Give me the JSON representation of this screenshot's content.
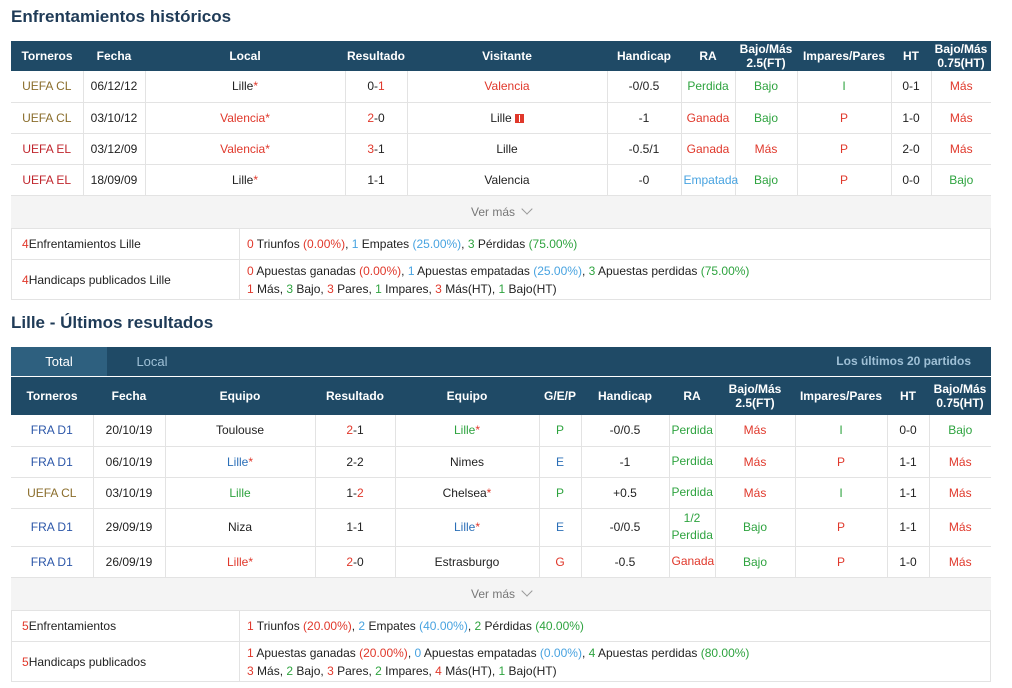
{
  "h2h": {
    "title": "Enfrentamientos históricos",
    "headers": [
      "Torneros",
      "Fecha",
      "Local",
      "Resultado",
      "Visitante",
      "Handicap",
      "RA",
      "Bajo/Más 2.5(FT)",
      "Impares/Pares",
      "HT",
      "Bajo/Más 0.75(HT)"
    ],
    "rows": [
      {
        "t": "UEFA CL",
        "tc": "c-gold",
        "f": "06/12/12",
        "l": "Lille",
        "lc": "",
        "ls": true,
        "ra": "0",
        "rb": "1",
        "rc": "b",
        "v": "Valencia",
        "vc": "c-red",
        "vs": false,
        "vf": false,
        "h": "-0/0.5",
        "a": "Perdida",
        "ac": "c-green",
        "b": "Bajo",
        "bc": "c-green",
        "i": "I",
        "ic": "c-green",
        "ht": "0-1",
        "m": "Más",
        "mc": "c-red"
      },
      {
        "t": "UEFA CL",
        "tc": "c-gold",
        "f": "03/10/12",
        "l": "Valencia",
        "lc": "c-red",
        "ls": true,
        "ra": "2",
        "rb": "0",
        "rc": "a",
        "v": "Lille",
        "vc": "",
        "vs": false,
        "vf": true,
        "h": "-1",
        "a": "Ganada",
        "ac": "c-red",
        "b": "Bajo",
        "bc": "c-green",
        "i": "P",
        "ic": "c-red",
        "ht": "1-0",
        "m": "Más",
        "mc": "c-red"
      },
      {
        "t": "UEFA EL",
        "tc": "c-dred",
        "f": "03/12/09",
        "l": "Valencia",
        "lc": "c-red",
        "ls": true,
        "ra": "3",
        "rb": "1",
        "rc": "a",
        "v": "Lille",
        "vc": "",
        "vs": false,
        "vf": false,
        "h": "-0.5/1",
        "a": "Ganada",
        "ac": "c-red",
        "b": "Más",
        "bc": "c-red",
        "i": "P",
        "ic": "c-red",
        "ht": "2-0",
        "m": "Más",
        "mc": "c-red"
      },
      {
        "t": "UEFA EL",
        "tc": "c-dred",
        "f": "18/09/09",
        "l": "Lille",
        "lc": "",
        "ls": true,
        "ra": "1",
        "rb": "1",
        "rc": "",
        "v": "Valencia",
        "vc": "",
        "vs": false,
        "vf": false,
        "h": "-0",
        "a": "Empatada",
        "ac": "c-lblue",
        "b": "Bajo",
        "bc": "c-green",
        "i": "P",
        "ic": "c-red",
        "ht": "0-0",
        "m": "Bajo",
        "mc": "c-green"
      }
    ],
    "ver_mas": "Ver más",
    "summary": {
      "r1_label": "4 Enfrentamientos Lille",
      "r1": {
        "wn": "0",
        "wt": " Triunfos ",
        "wp": "(0.00%)",
        "dn": "1",
        "dt": " Empates ",
        "dp": "(25.00%)",
        "ln": "3",
        "lt": " Pérdidas ",
        "lp": "(75.00%)"
      },
      "r2_label": "4 Handicaps publicados Lille",
      "r2": {
        "wn": "0",
        "wt": " Apuestas ganadas ",
        "wp": "(0.00%)",
        "dn": "1",
        "dt": " Apuestas empatadas ",
        "dp": "(25.00%)",
        "ln": "3",
        "lt": " Apuestas perdidas ",
        "lp": "(75.00%)"
      },
      "r3": {
        "a": "1",
        "at": " Más, ",
        "b": "3",
        "bt": " Bajo, ",
        "c": "3",
        "ct": " Pares, ",
        "d": "1",
        "dt": " Impares, ",
        "e": "3",
        "et": " Más(HT), ",
        "f": "1",
        "ft": " Bajo(HT)"
      }
    }
  },
  "last": {
    "title": "Lille - Últimos resultados",
    "tab_total": "Total",
    "tab_local": "Local",
    "tab_right": "Los últimos 20 partidos",
    "headers": [
      "Torneros",
      "Fecha",
      "Equipo",
      "Resultado",
      "Equipo",
      "G/E/P",
      "Handicap",
      "RA",
      "Bajo/Más 2.5(FT)",
      "Impares/Pares",
      "HT",
      "Bajo/Más 0.75(HT)"
    ],
    "rows": [
      {
        "t": "FRA D1",
        "tc": "c-navy",
        "f": "20/10/19",
        "l": "Toulouse",
        "lc": "",
        "ls": false,
        "ra": "2",
        "rb": "1",
        "rc": "a",
        "v": "Lille",
        "vc": "c-green",
        "vs": true,
        "g": "P",
        "gc": "c-green",
        "h": "-0/0.5",
        "a": "Perdida",
        "ac": "c-green",
        "a2": "",
        "b": "Más",
        "bc": "c-red",
        "i": "I",
        "ic": "c-green",
        "ht": "0-0",
        "m": "Bajo",
        "mc": "c-green"
      },
      {
        "t": "FRA D1",
        "tc": "c-navy",
        "f": "06/10/19",
        "l": "Lille",
        "lc": "c-blue",
        "ls": true,
        "ra": "2",
        "rb": "2",
        "rc": "",
        "v": "Nimes",
        "vc": "",
        "vs": false,
        "g": "E",
        "gc": "c-blue",
        "h": "-1",
        "a": "Perdida",
        "ac": "c-green",
        "a2": "",
        "b": "Más",
        "bc": "c-red",
        "i": "P",
        "ic": "c-red",
        "ht": "1-1",
        "m": "Más",
        "mc": "c-red"
      },
      {
        "t": "UEFA CL",
        "tc": "c-gold",
        "f": "03/10/19",
        "l": "Lille",
        "lc": "c-green",
        "ls": false,
        "ra": "1",
        "rb": "2",
        "rc": "b",
        "v": "Chelsea",
        "vc": "",
        "vs": true,
        "g": "P",
        "gc": "c-green",
        "h": "+0.5",
        "a": "Perdida",
        "ac": "c-green",
        "a2": "",
        "b": "Más",
        "bc": "c-red",
        "i": "I",
        "ic": "c-green",
        "ht": "1-1",
        "m": "Más",
        "mc": "c-red"
      },
      {
        "t": "FRA D1",
        "tc": "c-navy",
        "f": "29/09/19",
        "l": "Niza",
        "lc": "",
        "ls": false,
        "ra": "1",
        "rb": "1",
        "rc": "",
        "v": "Lille",
        "vc": "c-blue",
        "vs": true,
        "g": "E",
        "gc": "c-blue",
        "h": "-0/0.5",
        "a": "1/2",
        "ac": "c-green",
        "a2": "Perdida",
        "b": "Bajo",
        "bc": "c-green",
        "i": "P",
        "ic": "c-red",
        "ht": "1-1",
        "m": "Más",
        "mc": "c-red"
      },
      {
        "t": "FRA D1",
        "tc": "c-navy",
        "f": "26/09/19",
        "l": "Lille",
        "lc": "c-red",
        "ls": true,
        "ra": "2",
        "rb": "0",
        "rc": "a",
        "v": "Estrasburgo",
        "vc": "",
        "vs": false,
        "g": "G",
        "gc": "c-red",
        "h": "-0.5",
        "a": "Ganada",
        "ac": "c-red",
        "a2": "",
        "b": "Bajo",
        "bc": "c-green",
        "i": "P",
        "ic": "c-red",
        "ht": "1-0",
        "m": "Más",
        "mc": "c-red"
      }
    ],
    "ver_mas": "Ver más",
    "summary": {
      "r1_label": "5 Enfrentamientos",
      "r1": {
        "wn": "1",
        "wt": " Triunfos ",
        "wp": "(20.00%)",
        "dn": "2",
        "dt": " Empates ",
        "dp": "(40.00%)",
        "ln": "2",
        "lt": " Pérdidas ",
        "lp": "(40.00%)"
      },
      "r2_label": "5 Handicaps publicados",
      "r2": {
        "wn": "1",
        "wt": " Apuestas ganadas ",
        "wp": "(20.00%)",
        "dn": "0",
        "dt": " Apuestas empatadas ",
        "dp": "(0.00%)",
        "ln": "4",
        "lt": " Apuestas perdidas ",
        "lp": "(80.00%)"
      },
      "r3": {
        "a": "3",
        "at": " Más, ",
        "b": "2",
        "bt": " Bajo, ",
        "c": "3",
        "ct": " Pares, ",
        "d": "2",
        "dt": " Impares, ",
        "e": "4",
        "et": " Más(HT), ",
        "f": "1",
        "ft": " Bajo(HT)"
      }
    }
  }
}
